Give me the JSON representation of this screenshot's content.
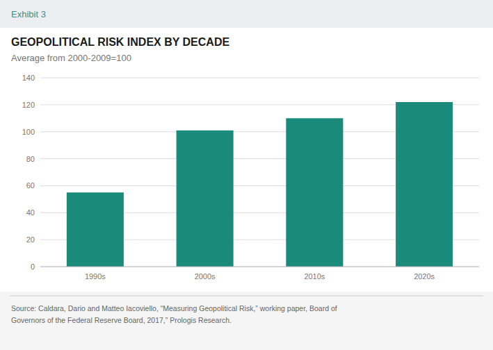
{
  "chart_data": {
    "type": "bar",
    "title": "GEOPOLITICAL RISK INDEX BY DECADE",
    "subtitle": "Average from 2000-2009=100",
    "annotations": [
      "Exhibit 3",
      "Source: Caldara, Dario and Matteo Iacoviello, “Measuring Geopolitical Risk,” working paper, Board of\nGovernors of the Federal Reserve Board, 2017,” Prologis Research."
    ],
    "categories": [
      "1990s",
      "2000s",
      "2010s",
      "2020s"
    ],
    "values": [
      55,
      101,
      110,
      122
    ],
    "color": "#1a8a7a",
    "ylim": [
      0,
      140
    ],
    "yticks": [
      0,
      20,
      40,
      60,
      80,
      100,
      120,
      140
    ],
    "grid": true
  }
}
